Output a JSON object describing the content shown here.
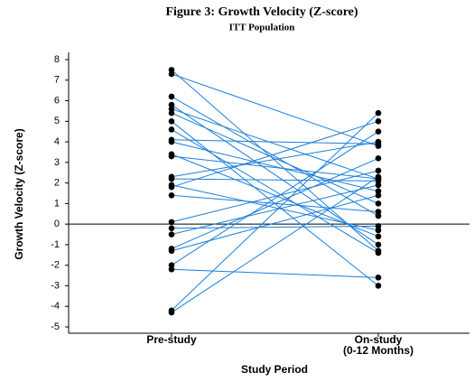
{
  "chart_data": {
    "type": "slope",
    "title": "Figure 3: Growth Velocity (Z-score)",
    "subtitle": "ITT Population",
    "y_label": "Growth Velocity (Z-score)",
    "x_label": "Study Period",
    "categories": [
      "Pre-study",
      [
        "On-study",
        "(0-12 Months)"
      ]
    ],
    "ylim": [
      -5,
      8
    ],
    "yticks": [
      -5,
      -4,
      -3,
      -2,
      -1,
      0,
      1,
      2,
      3,
      4,
      5,
      6,
      7,
      8
    ],
    "reference_line": 0,
    "color": "#1a7fd9",
    "marker_color": "#000000",
    "series": [
      {
        "values": [
          7.5,
          -1.3
        ]
      },
      {
        "values": [
          7.3,
          3.8
        ]
      },
      {
        "values": [
          6.2,
          0.4
        ]
      },
      {
        "values": [
          5.8,
          -1.0
        ]
      },
      {
        "values": [
          5.6,
          2.2
        ]
      },
      {
        "values": [
          5.4,
          1.0
        ]
      },
      {
        "values": [
          5.0,
          -3.0
        ]
      },
      {
        "values": [
          4.6,
          -1.4
        ]
      },
      {
        "values": [
          4.1,
          3.9
        ]
      },
      {
        "values": [
          4.0,
          1.6
        ]
      },
      {
        "values": [
          3.4,
          -0.6
        ]
      },
      {
        "values": [
          3.3,
          2.2
        ]
      },
      {
        "values": [
          2.3,
          4.0
        ]
      },
      {
        "values": [
          2.2,
          2.1
        ]
      },
      {
        "values": [
          1.9,
          -0.3
        ]
      },
      {
        "values": [
          1.8,
          5.0
        ]
      },
      {
        "values": [
          1.4,
          0.6
        ]
      },
      {
        "values": [
          0.1,
          2.6
        ]
      },
      {
        "values": [
          -0.2,
          -0.1
        ]
      },
      {
        "values": [
          -0.5,
          1.9
        ]
      },
      {
        "values": [
          -1.2,
          3.2
        ]
      },
      {
        "values": [
          -1.3,
          1.4
        ]
      },
      {
        "values": [
          -2.0,
          4.5
        ]
      },
      {
        "values": [
          -2.2,
          -2.6
        ]
      },
      {
        "values": [
          -4.2,
          5.4
        ]
      },
      {
        "values": [
          -4.3,
          2.3
        ]
      }
    ]
  }
}
